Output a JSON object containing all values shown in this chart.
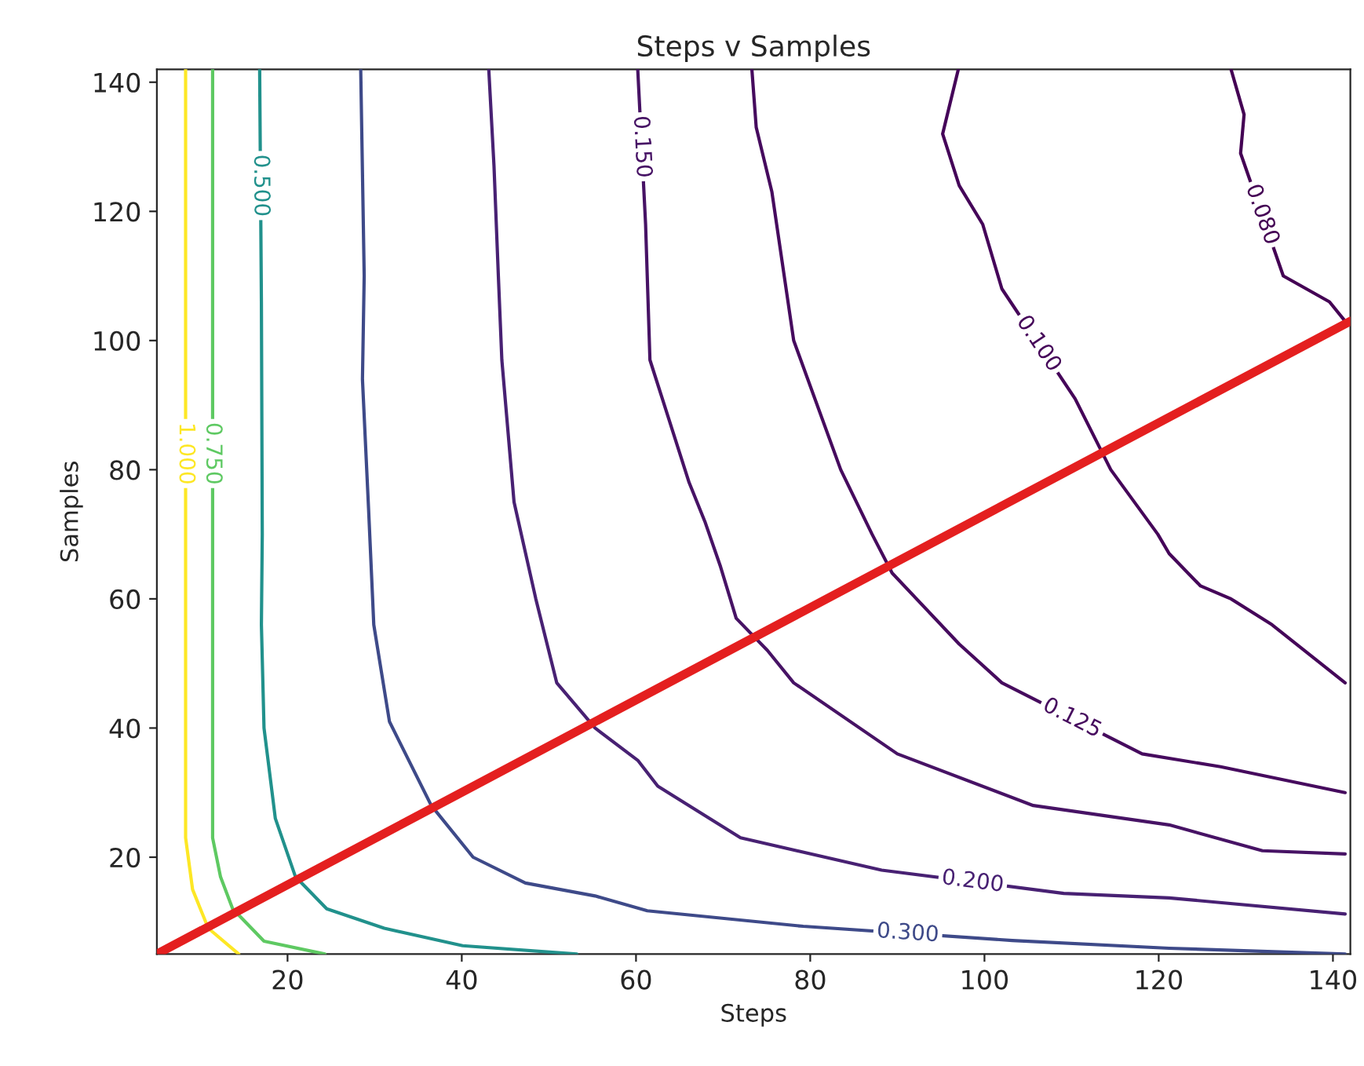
{
  "chart_data": {
    "type": "line",
    "title": "Steps v Samples",
    "xlabel": "Steps",
    "ylabel": "Samples",
    "xlim": [
      5,
      142
    ],
    "ylim": [
      5,
      142
    ],
    "xticks": [
      20,
      40,
      60,
      80,
      100,
      120,
      140
    ],
    "yticks": [
      20,
      40,
      60,
      80,
      100,
      120,
      140
    ],
    "grid": false,
    "legend": false,
    "marker": "none",
    "line_style": "solid",
    "series": [
      {
        "name": "1.000",
        "color": "#fde725",
        "x": [
          8.3,
          8.3,
          9.1,
          10.9,
          14.4
        ],
        "values": [
          142,
          23,
          15,
          9,
          5
        ]
      },
      {
        "name": "0.750",
        "color": "#5ec962",
        "x": [
          11.4,
          11.4,
          12.3,
          13.7,
          17.3,
          24.3
        ],
        "values": [
          142,
          23,
          17,
          12,
          7,
          5
        ]
      },
      {
        "name": "0.500",
        "color": "#21918c",
        "x": [
          16.8,
          17.0,
          17.1,
          17.0,
          17.3,
          18.6,
          20.9,
          24.5,
          31.1,
          40.1,
          53.2
        ],
        "values": [
          142,
          106,
          70,
          56,
          40,
          26,
          17,
          12,
          9,
          6.3,
          5
        ]
      },
      {
        "name": "0.300",
        "color": "#3e4a89",
        "x": [
          28.4,
          28.8,
          28.6,
          29.3,
          29.9,
          31.7,
          36.5,
          41.3,
          47.3,
          55.3,
          61.3,
          79.2,
          103.2,
          121.2,
          141.4
        ],
        "values": [
          142,
          110,
          94,
          74,
          56,
          41,
          28,
          20,
          16,
          14,
          11.7,
          9.3,
          7.1,
          5.9,
          5
        ]
      },
      {
        "name": "0.200",
        "color": "#482173",
        "x": [
          43.1,
          43.7,
          44.2,
          44.6,
          46.0,
          48.5,
          50.9,
          55.3,
          60.2,
          62.5,
          72.0,
          88.2,
          109.1,
          121.2,
          141.4
        ],
        "values": [
          142,
          127,
          110,
          97,
          75,
          60,
          47,
          40,
          35,
          31,
          23,
          18,
          14.4,
          13.7,
          11.2
        ]
      },
      {
        "name": "0.150",
        "color": "#471365",
        "x": [
          60.2,
          61.1,
          61.6,
          66.1,
          67.9,
          69.7,
          71.5,
          75.1,
          78.1,
          90.0,
          105.6,
          121.2,
          131.9,
          141.4
        ],
        "values": [
          142,
          118,
          97,
          78,
          72,
          65,
          57,
          52,
          47,
          36,
          28,
          25,
          21,
          20.5
        ]
      },
      {
        "name": "0.125",
        "color": "#460b5e",
        "x": [
          73.3,
          73.8,
          75.6,
          78.1,
          83.5,
          87.1,
          89.4,
          97.1,
          102.0,
          118.1,
          127.1,
          141.4
        ],
        "values": [
          142,
          133,
          123,
          100,
          80,
          70,
          64,
          53,
          47,
          36,
          34,
          30
        ]
      },
      {
        "name": "0.100",
        "color": "#450559",
        "x": [
          97.0,
          95.2,
          97.1,
          99.8,
          102.0,
          110.4,
          114.5,
          119.9,
          121.2,
          124.8,
          128.3,
          133.0,
          141.4
        ],
        "values": [
          142,
          132,
          124,
          118,
          108,
          91,
          80,
          70,
          67,
          62,
          60,
          56,
          47
        ]
      },
      {
        "name": "0.080",
        "color": "#440154",
        "x": [
          128.3,
          129.8,
          129.4,
          134.3,
          139.6,
          141.4
        ],
        "values": [
          142,
          135,
          129,
          110,
          106,
          103
        ]
      },
      {
        "color": "#e41f1f",
        "x": [
          5,
          142
        ],
        "values": [
          5,
          103
        ]
      }
    ]
  }
}
